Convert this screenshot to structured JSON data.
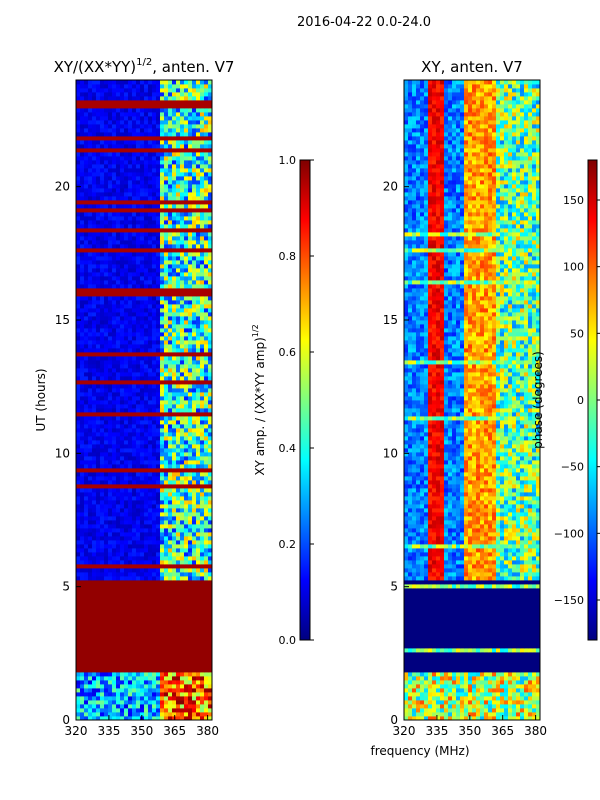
{
  "figure": {
    "suptitle": "2016-04-22 0.0-24.0",
    "shared_xlabel": "frequency (MHz)"
  },
  "colors": {
    "jet_stops": [
      "#00007f",
      "#0000ff",
      "#007fff",
      "#00ffff",
      "#7fff7f",
      "#ffff00",
      "#ff7f00",
      "#ff0000",
      "#7f0000"
    ],
    "axes_edge": "#000000"
  },
  "chart_data": [
    {
      "type": "heatmap",
      "title_base": "XY/(XX*YY)",
      "title_sup": "1/2",
      "title_suffix": ", anten. V7",
      "ylabel": "UT (hours)",
      "xlim": [
        320,
        382
      ],
      "ylim": [
        0,
        24
      ],
      "xticks": [
        320,
        335,
        350,
        365,
        380
      ],
      "xtick_labels": [
        "320",
        "335",
        "350",
        "365",
        "380"
      ],
      "yticks": [
        0,
        5,
        10,
        15,
        20
      ],
      "ytick_labels": [
        "0",
        "5",
        "10",
        "15",
        "20"
      ],
      "colorbar": {
        "label_base": "XY amp. / (XX*YY amp)",
        "label_sup": "1/2",
        "range": [
          0.0,
          1.0
        ],
        "ticks": [
          0.0,
          0.2,
          0.4,
          0.6,
          0.8,
          1.0
        ],
        "tick_labels": [
          "0.0",
          "0.2",
          "0.4",
          "0.6",
          "0.8",
          "1.0"
        ]
      },
      "description_bands": [
        {
          "t0": 0.0,
          "t1": 1.8,
          "level": 0.45,
          "note": "mixed"
        },
        {
          "t0": 1.8,
          "t1": 5.3,
          "level": 1.0,
          "note": "saturated"
        },
        {
          "t0": 5.3,
          "t1": 24.0,
          "level": 0.08,
          "note": "low"
        }
      ]
    },
    {
      "type": "heatmap",
      "title": "XY, anten. V7",
      "xlim": [
        320,
        382
      ],
      "ylim": [
        0,
        24
      ],
      "xticks": [
        320,
        335,
        350,
        365,
        380
      ],
      "xtick_labels": [
        "320",
        "335",
        "350",
        "365",
        "380"
      ],
      "yticks": [
        0,
        5,
        10,
        15,
        20
      ],
      "ytick_labels": [
        "0",
        "5",
        "10",
        "15",
        "20"
      ],
      "colorbar": {
        "label": "phase (degrees)",
        "range": [
          -180,
          180
        ],
        "ticks": [
          -150,
          -100,
          -50,
          0,
          50,
          100,
          150
        ],
        "tick_labels": [
          "−150",
          "−100",
          "−50",
          "0",
          "50",
          "100",
          "150"
        ]
      },
      "description_bands": [
        {
          "t0": 0.0,
          "t1": 5.3,
          "note": "mixed / -180 block"
        },
        {
          "t0": 5.3,
          "t1": 24.0,
          "note": "phase stripes"
        }
      ]
    }
  ]
}
